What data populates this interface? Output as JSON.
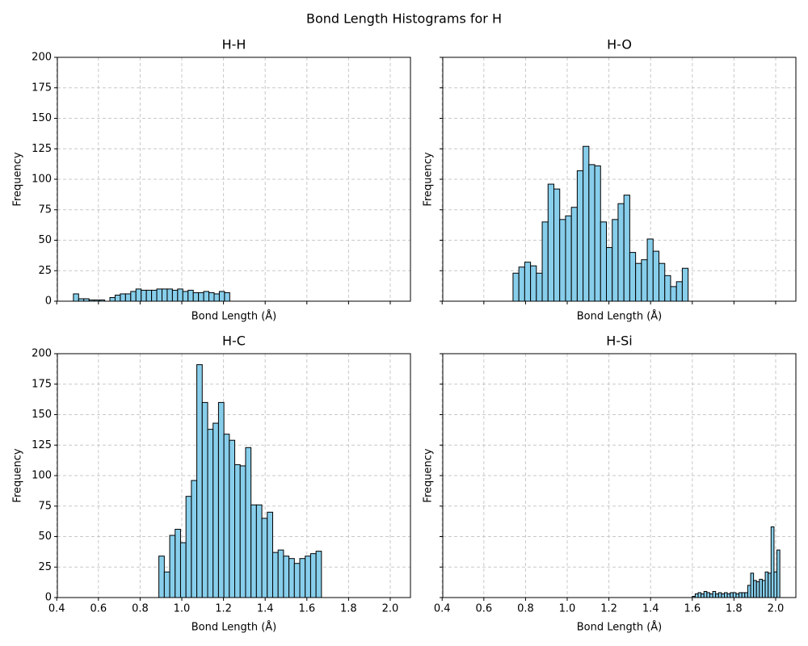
{
  "title": "Bond Length Histograms for H",
  "chart_data": [
    {
      "type": "histogram",
      "title": "H-H",
      "xlabel": "Bond Length (Å)",
      "ylabel": "Frequency",
      "color": "#87ceeb",
      "edgecolor": "#000000",
      "grid": true,
      "bins": [
        0.48,
        0.505,
        0.53,
        0.555,
        0.58,
        0.605,
        0.63,
        0.655,
        0.68,
        0.705,
        0.73,
        0.755,
        0.78,
        0.805,
        0.83,
        0.855,
        0.88,
        0.905,
        0.93,
        0.955,
        0.98,
        1.005,
        1.03,
        1.055,
        1.08,
        1.105,
        1.13,
        1.155,
        1.18,
        1.205,
        1.23
      ],
      "values": [
        6,
        2,
        2,
        1,
        1,
        1,
        0,
        3,
        5,
        6,
        6,
        8,
        10,
        9,
        9,
        9,
        10,
        10,
        10,
        9,
        10,
        8,
        9,
        7,
        7,
        8,
        7,
        6,
        8,
        7
      ],
      "xlim": [
        0.403,
        2.097
      ],
      "ylim": [
        0,
        200
      ],
      "xticks": [
        0.4,
        0.6,
        0.8,
        {
          "value": 1,
          "label": "1.0"
        },
        1.2,
        1.4,
        1.6,
        1.8,
        {
          "value": 2,
          "label": "2.0"
        }
      ],
      "yticks": [
        0,
        25,
        50,
        75,
        100,
        125,
        150,
        175,
        200
      ]
    },
    {
      "type": "histogram",
      "title": "H-O",
      "xlabel": "Bond Length (Å)",
      "ylabel": "Frequency",
      "color": "#87ceeb",
      "edgecolor": "#000000",
      "grid": true,
      "bins": [
        0.74,
        0.768,
        0.796,
        0.824,
        0.852,
        0.88,
        0.908,
        0.936,
        0.964,
        0.992,
        1.02,
        1.048,
        1.076,
        1.104,
        1.132,
        1.16,
        1.188,
        1.216,
        1.244,
        1.272,
        1.3,
        1.328,
        1.356,
        1.384,
        1.412,
        1.44,
        1.468,
        1.496,
        1.524,
        1.552,
        1.58
      ],
      "values": [
        23,
        28,
        32,
        29,
        23,
        65,
        96,
        92,
        67,
        70,
        77,
        107,
        127,
        112,
        111,
        65,
        44,
        67,
        80,
        87,
        40,
        31,
        34,
        51,
        41,
        31,
        21,
        12,
        16,
        27
      ],
      "xlim": [
        0.403,
        2.097
      ],
      "ylim": [
        0,
        200
      ],
      "xticks": [
        0.4,
        0.6,
        0.8,
        {
          "value": 1,
          "label": "1.0"
        },
        1.2,
        1.4,
        1.6,
        1.8,
        {
          "value": 2,
          "label": "2.0"
        }
      ],
      "yticks": [
        0,
        25,
        50,
        75,
        100,
        125,
        150,
        175,
        200
      ]
    },
    {
      "type": "histogram",
      "title": "H-C",
      "xlabel": "Bond Length (Å)",
      "ylabel": "Frequency",
      "color": "#87ceeb",
      "edgecolor": "#000000",
      "grid": true,
      "bins": [
        0.89,
        0.916,
        0.942,
        0.968,
        0.994,
        1.02,
        1.046,
        1.072,
        1.098,
        1.124,
        1.15,
        1.176,
        1.202,
        1.228,
        1.254,
        1.28,
        1.306,
        1.332,
        1.358,
        1.384,
        1.41,
        1.436,
        1.462,
        1.488,
        1.514,
        1.54,
        1.566,
        1.592,
        1.618,
        1.644,
        1.67
      ],
      "values": [
        34,
        21,
        51,
        56,
        45,
        83,
        96,
        191,
        160,
        138,
        143,
        160,
        134,
        129,
        109,
        108,
        123,
        76,
        76,
        65,
        70,
        37,
        39,
        34,
        32,
        28,
        32,
        34,
        36,
        38
      ],
      "xlim": [
        0.403,
        2.097
      ],
      "ylim": [
        0,
        200
      ],
      "xticks": [
        0.4,
        0.6,
        0.8,
        {
          "value": 1,
          "label": "1.0"
        },
        1.2,
        1.4,
        1.6,
        1.8,
        {
          "value": 2,
          "label": "2.0"
        }
      ],
      "yticks": [
        0,
        25,
        50,
        75,
        100,
        125,
        150,
        175,
        200
      ]
    },
    {
      "type": "histogram",
      "title": "H-Si",
      "xlabel": "Bond Length (Å)",
      "ylabel": "Frequency",
      "color": "#87ceeb",
      "edgecolor": "#000000",
      "grid": true,
      "bins": [
        1.6,
        1.614,
        1.628,
        1.642,
        1.656,
        1.67,
        1.684,
        1.698,
        1.712,
        1.726,
        1.74,
        1.754,
        1.768,
        1.782,
        1.796,
        1.81,
        1.824,
        1.838,
        1.852,
        1.866,
        1.88,
        1.894,
        1.908,
        1.922,
        1.936,
        1.95,
        1.964,
        1.978,
        1.992,
        2.006,
        2.02
      ],
      "values": [
        1,
        3,
        4,
        3,
        5,
        4,
        3,
        5,
        3,
        4,
        3,
        4,
        3,
        4,
        4,
        3,
        4,
        4,
        4,
        10,
        20,
        14,
        13,
        15,
        14,
        21,
        20,
        58,
        21,
        39
      ],
      "xlim": [
        0.403,
        2.097
      ],
      "ylim": [
        0,
        200
      ],
      "xticks": [
        0.4,
        0.6,
        0.8,
        {
          "value": 1,
          "label": "1.0"
        },
        1.2,
        1.4,
        1.6,
        1.8,
        {
          "value": 2,
          "label": "2.0"
        }
      ],
      "yticks": [
        0,
        25,
        50,
        75,
        100,
        125,
        150,
        175,
        200
      ]
    }
  ]
}
